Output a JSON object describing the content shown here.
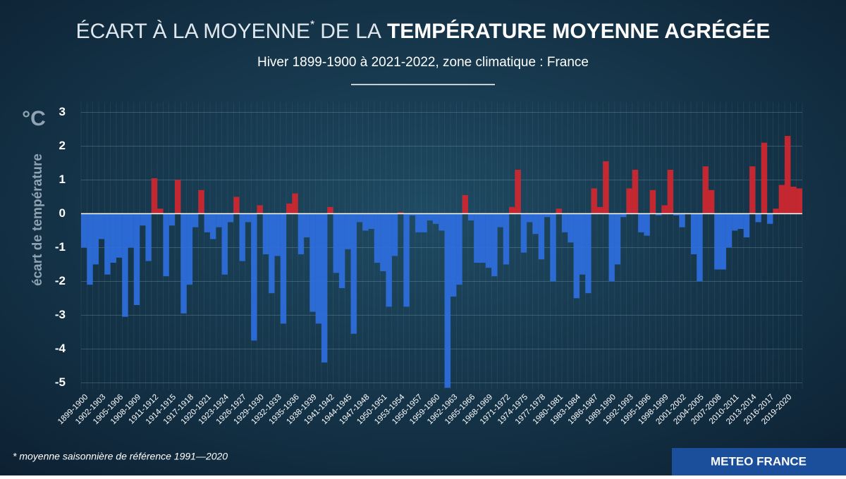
{
  "chart_data": {
    "type": "bar",
    "title": {
      "part1": "ÉCART À LA MOYENNE",
      "mark": "*",
      "part2": "DE LA",
      "part3": "TEMPÉRATURE MOYENNE AGRÉGÉE"
    },
    "subtitle": "Hiver 1899-1900 à 2021-2022, zone climatique : France",
    "y_unit": "°C",
    "ylabel": "écart de température",
    "footnote": "* moyenne saisonnière de référence 1991—2020",
    "source": "METEO FRANCE",
    "categories": [
      "1899-1900",
      null,
      null,
      "1902-1903",
      null,
      null,
      "1905-1906",
      null,
      null,
      "1908-1909",
      null,
      null,
      "1911-1912",
      null,
      null,
      "1914-1915",
      null,
      null,
      "1917-1918",
      null,
      null,
      "1920-1921",
      null,
      null,
      "1923-1924",
      null,
      null,
      "1926-1927",
      null,
      null,
      "1929-1930",
      null,
      null,
      "1932-1933",
      null,
      null,
      "1935-1936",
      null,
      null,
      "1938-1939",
      null,
      null,
      "1941-1942",
      null,
      null,
      "1944-1945",
      null,
      null,
      "1947-1948",
      null,
      null,
      "1950-1951",
      null,
      null,
      "1953-1954",
      null,
      null,
      "1956-1957",
      null,
      null,
      "1959-1960",
      null,
      null,
      "1962-1963",
      null,
      null,
      "1965-1966",
      null,
      null,
      "1968-1969",
      null,
      null,
      "1971-1972",
      null,
      null,
      "1974-1975",
      null,
      null,
      "1977-1978",
      null,
      null,
      "1980-1981",
      null,
      null,
      "1983-1984",
      null,
      null,
      "1986-1987",
      null,
      null,
      "1989-1990",
      null,
      null,
      "1992-1993",
      null,
      null,
      "1995-1996",
      null,
      null,
      "1998-1999",
      null,
      null,
      "2001-2002",
      null,
      null,
      "2004-2005",
      null,
      null,
      "2007-2008",
      null,
      null,
      "2010-2011",
      null,
      null,
      "2013-2014",
      null,
      null,
      "2016-2017",
      null,
      null,
      "2019-2020",
      null,
      null
    ],
    "values": [
      -1.0,
      -2.1,
      -1.5,
      -0.75,
      -1.8,
      -1.45,
      -1.3,
      -3.05,
      -1.0,
      -2.7,
      -0.35,
      -1.4,
      1.05,
      0.15,
      -1.85,
      -0.35,
      1.0,
      -2.95,
      -2.1,
      -0.4,
      0.7,
      -0.55,
      -0.75,
      -0.4,
      -1.8,
      -0.25,
      0.5,
      -1.4,
      -0.25,
      -3.75,
      0.25,
      -1.2,
      -2.35,
      -1.25,
      -3.25,
      0.3,
      0.6,
      -1.2,
      -0.7,
      -2.9,
      -3.25,
      -4.4,
      0.2,
      -1.75,
      -2.2,
      -1.05,
      -3.55,
      -0.25,
      -0.5,
      -0.45,
      -1.45,
      -1.7,
      -2.75,
      -1.25,
      0.05,
      -2.75,
      -0.05,
      -0.55,
      -0.55,
      -0.2,
      -0.3,
      -0.5,
      -5.15,
      -2.45,
      -2.1,
      0.55,
      -0.2,
      -1.45,
      -1.45,
      -1.6,
      -1.85,
      -0.4,
      -1.5,
      0.2,
      1.3,
      -1.15,
      -0.25,
      -0.6,
      -1.35,
      -0.1,
      -2.0,
      0.15,
      -0.55,
      -0.85,
      -2.5,
      -1.8,
      -2.35,
      0.75,
      0.2,
      1.55,
      -2.0,
      -1.5,
      -0.1,
      0.75,
      1.3,
      -0.55,
      -0.65,
      0.7,
      -0.05,
      0.25,
      1.3,
      -0.05,
      -0.4,
      0.0,
      -1.2,
      -2.0,
      1.4,
      0.7,
      -1.65,
      -1.65,
      -1.0,
      -0.5,
      -0.45,
      -0.7,
      1.4,
      -0.25,
      2.1,
      -0.3,
      0.15,
      0.85,
      2.3,
      0.8,
      0.75
    ],
    "positive_color": "#d4262e",
    "negative_color": "#2e6ee0",
    "ylim": [
      -5.2,
      3.3
    ],
    "yticks": [
      -5,
      -4,
      -3,
      -2,
      -1,
      0,
      1,
      2,
      3
    ],
    "grid": true
  }
}
